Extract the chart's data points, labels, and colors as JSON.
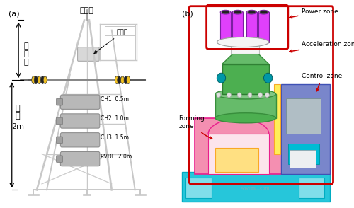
{
  "fig_width": 5.0,
  "fig_height": 2.94,
  "dpi": 100,
  "bg_color": "#ffffff",
  "panel_a_label": "(a)",
  "panel_b_label": "(b)",
  "top_label": "动力源",
  "guide_label": "导向管",
  "safety_label": "安全罩",
  "liquid_label": "液室",
  "liquid_2m": "2m",
  "ch1": "CH1  0.5m",
  "ch2": "CH2  1.0m",
  "ch3": "CH3  1.5m",
  "pvdf": "PVDF  2.0m",
  "power_zone": "Power zone",
  "acceleration_zone": "Acceleration zone",
  "control_zone": "Control zone",
  "forming_zone": "Forming\nzone",
  "border_color": "#cc0000",
  "arrow_color": "#cc0000",
  "text_color": "#000000",
  "frame_color": "#b0b0b0",
  "fs_label": 8,
  "fs_annot": 6.5,
  "fs_ch": 5.5,
  "fs_panel": 8
}
